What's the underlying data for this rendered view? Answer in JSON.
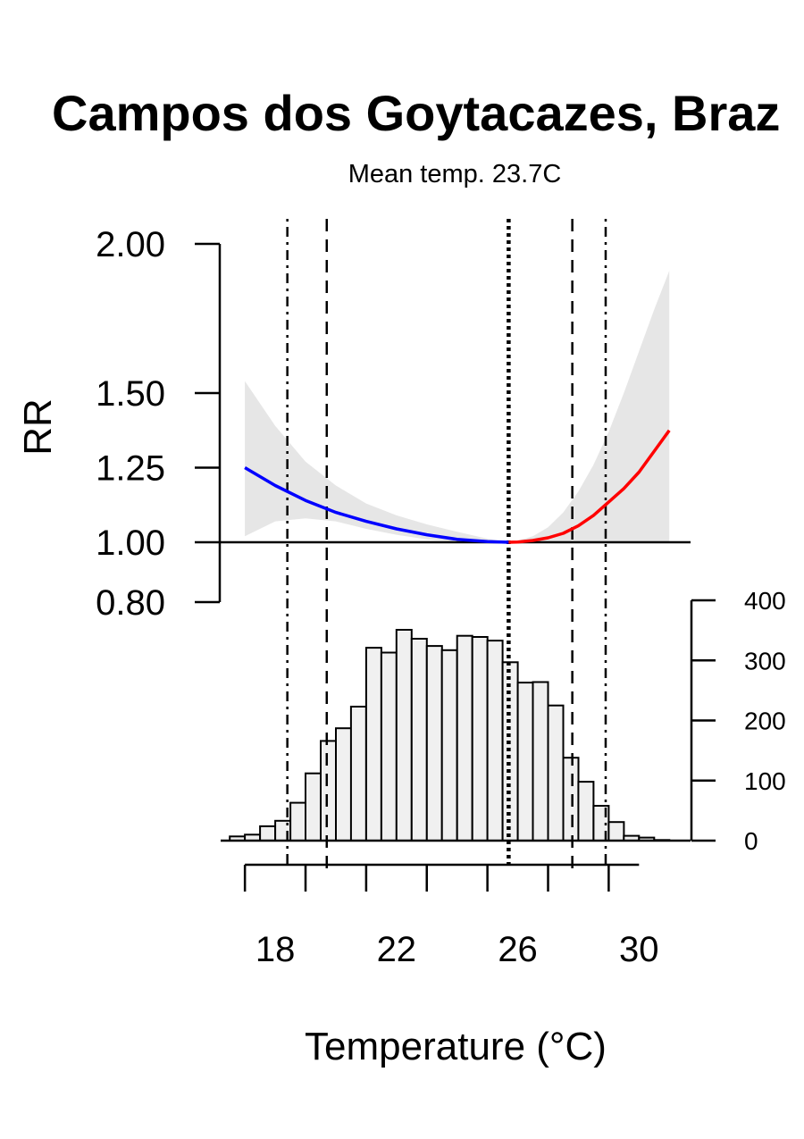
{
  "chart_data": {
    "type": "line",
    "title": "Campos dos Goytacazes, Braz",
    "subtitle": "Mean temp. 23.7C",
    "xlabel": "Temperature (°C)",
    "ylabel": "RR",
    "x_ticks": [
      "18",
      "22",
      "26",
      "30"
    ],
    "x_tick_values": [
      18,
      22,
      26,
      30
    ],
    "x_minor_ticks": [
      17,
      18,
      19,
      20,
      21,
      22,
      23,
      24,
      25,
      26,
      27,
      28,
      29,
      30
    ],
    "xlim": [
      16.2,
      31.7
    ],
    "y_ticks": [
      "2.00",
      "1.50",
      "1.25",
      "1.00",
      "0.80"
    ],
    "y_tick_values": [
      2.0,
      1.5,
      1.25,
      1.0,
      0.8
    ],
    "reference_rr": 1.0,
    "mmt": 25.7,
    "vlines": [
      {
        "x": 18.4,
        "style": "dotdash"
      },
      {
        "x": 19.7,
        "style": "dashed"
      },
      {
        "x": 25.7,
        "style": "dotted"
      },
      {
        "x": 27.8,
        "style": "dashed"
      },
      {
        "x": 28.9,
        "style": "dotdash"
      }
    ],
    "series": [
      {
        "color": "#0000ff",
        "x": [
          17.0,
          18.0,
          19.0,
          20.0,
          21.0,
          22.0,
          23.0,
          24.0,
          25.0,
          25.7
        ],
        "y": [
          1.25,
          1.19,
          1.14,
          1.1,
          1.07,
          1.045,
          1.025,
          1.01,
          1.002,
          1.0
        ]
      },
      {
        "color": "#ff0000",
        "x": [
          25.7,
          26.0,
          26.5,
          27.0,
          27.5,
          28.0,
          28.5,
          29.0,
          29.5,
          30.0,
          30.5,
          31.0
        ],
        "y": [
          1.0,
          1.001,
          1.006,
          1.015,
          1.03,
          1.055,
          1.09,
          1.135,
          1.18,
          1.235,
          1.305,
          1.375
        ]
      }
    ],
    "confidence_band": {
      "color": "#e6e6e6",
      "x": [
        17.0,
        18.0,
        19.0,
        20.0,
        21.0,
        22.0,
        23.0,
        24.0,
        25.0,
        25.7,
        26.0,
        26.5,
        27.0,
        27.5,
        28.0,
        28.5,
        29.0,
        29.5,
        30.0,
        30.5,
        31.0
      ],
      "lower": [
        1.02,
        1.07,
        1.08,
        1.07,
        1.045,
        1.025,
        1.01,
        1.003,
        1.0,
        1.0,
        1.0,
        1.0,
        1.0,
        1.0,
        1.0,
        1.0,
        1.0,
        1.0,
        1.0,
        1.0,
        1.0
      ],
      "upper": [
        1.54,
        1.39,
        1.27,
        1.19,
        1.13,
        1.09,
        1.06,
        1.035,
        1.012,
        1.0,
        1.005,
        1.02,
        1.05,
        1.1,
        1.17,
        1.26,
        1.37,
        1.5,
        1.64,
        1.78,
        1.91
      ]
    },
    "histogram": {
      "fill": "#f0f0f0",
      "y_ticks": [
        "400",
        "300",
        "200",
        "100",
        "0"
      ],
      "y_tick_values": [
        400,
        300,
        200,
        100,
        0
      ],
      "bin_width": 0.5,
      "bin_starts": [
        16.5,
        17.0,
        17.5,
        18.0,
        18.5,
        19.0,
        19.5,
        20.0,
        20.5,
        21.0,
        21.5,
        22.0,
        22.5,
        23.0,
        23.5,
        24.0,
        24.5,
        25.0,
        25.5,
        26.0,
        26.5,
        27.0,
        27.5,
        28.0,
        28.5,
        29.0,
        29.5,
        30.0,
        30.5
      ],
      "counts": [
        7,
        10,
        24,
        33,
        63,
        112,
        166,
        187,
        223,
        321,
        313,
        351,
        336,
        324,
        317,
        341,
        339,
        333,
        297,
        263,
        264,
        225,
        138,
        98,
        58,
        31,
        8,
        5,
        1
      ]
    }
  }
}
